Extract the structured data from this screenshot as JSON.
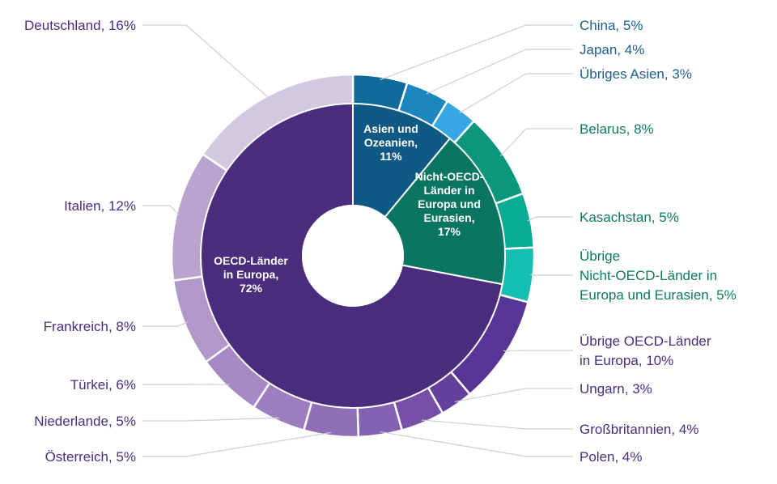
{
  "chart_data": {
    "type": "pie",
    "subtype": "sunburst-donut",
    "inner_ring": [
      {
        "label": [
          "Asien und",
          "Ozeanien,",
          "11%"
        ],
        "value": 11,
        "color": "#0f5a84"
      },
      {
        "label": [
          "Nicht-OECD-",
          "Länder in",
          "Europa und",
          "Eurasien,",
          "17%"
        ],
        "value": 17,
        "color": "#0a7661"
      },
      {
        "label": [
          "OECD-Länder",
          "in Europa,",
          "72%"
        ],
        "value": 72,
        "color": "#4a2d7d"
      }
    ],
    "outer_ring": [
      {
        "label": [
          "China, 5%"
        ],
        "value": 5,
        "color": "#116a9c",
        "text_color": "#1b5f8c"
      },
      {
        "label": [
          "Japan, 4%"
        ],
        "value": 4,
        "color": "#1c86bf",
        "text_color": "#1b5f8c"
      },
      {
        "label": [
          "Übriges Asien, 3%"
        ],
        "value": 3,
        "color": "#36a7e2",
        "text_color": "#1b5f8c"
      },
      {
        "label": [
          "Belarus, 8%"
        ],
        "value": 8,
        "color": "#0b977b",
        "text_color": "#0c7a5e"
      },
      {
        "label": [
          "Kasachstan, 5%"
        ],
        "value": 5,
        "color": "#09ab92",
        "text_color": "#0c7a5e"
      },
      {
        "label": [
          "Übrige",
          "Nicht-OECD-Länder in",
          "Europa und Eurasien, 5%"
        ],
        "value": 5,
        "color": "#14bfb1",
        "text_color": "#0c7a5e"
      },
      {
        "label": [
          "Übrige OECD-Länder",
          "in Europa, 10%"
        ],
        "value": 10,
        "color": "#573696",
        "text_color": "#4a2d7d"
      },
      {
        "label": [
          "Ungarn, 3%"
        ],
        "value": 3,
        "color": "#66419c",
        "text_color": "#4a2d7d"
      },
      {
        "label": [
          "Großbritannien, 4%"
        ],
        "value": 4,
        "color": "#7650a6",
        "text_color": "#4a2d7d"
      },
      {
        "label": [
          "Polen, 4%"
        ],
        "value": 4,
        "color": "#8462b1",
        "text_color": "#4a2d7d"
      },
      {
        "label": [
          "Österreich, 5%"
        ],
        "value": 5,
        "color": "#906fb7",
        "text_color": "#4a2d7d"
      },
      {
        "label": [
          "Niederlande, 5%"
        ],
        "value": 5,
        "color": "#9c7dbd",
        "text_color": "#4a2d7d"
      },
      {
        "label": [
          "Türkei, 6%"
        ],
        "value": 6,
        "color": "#a688c4",
        "text_color": "#4a2d7d"
      },
      {
        "label": [
          "Frankreich, 8%"
        ],
        "value": 8,
        "color": "#b197ca",
        "text_color": "#4a2d7d"
      },
      {
        "label": [
          "Italien, 12%"
        ],
        "value": 12,
        "color": "#bba3d0",
        "text_color": "#4a2d7d"
      },
      {
        "label": [
          "Deutschland, 16%"
        ],
        "value": 16,
        "color": "#d2c8e2",
        "text_color": "#4a2d7d"
      }
    ]
  }
}
